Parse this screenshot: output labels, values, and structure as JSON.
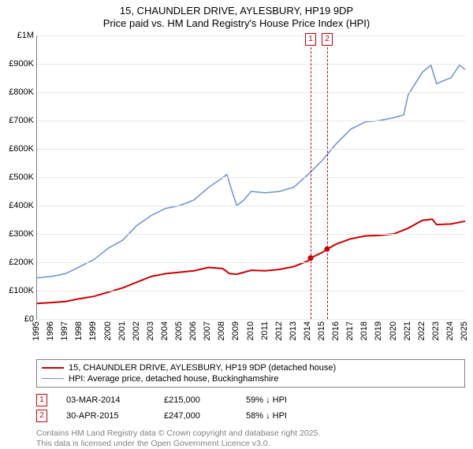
{
  "title": {
    "line1": "15, CHAUNDLER DRIVE, AYLESBURY, HP19 9DP",
    "line2": "Price paid vs. HM Land Registry's House Price Index (HPI)"
  },
  "chart": {
    "type": "line",
    "background_color": "#ffffff",
    "grid_color": "#e8e8e8",
    "axis_color": "#808080",
    "ylim": [
      0,
      1000000
    ],
    "ytick_step": 100000,
    "ytick_labels": [
      "£0",
      "£100K",
      "£200K",
      "£300K",
      "£400K",
      "£500K",
      "£600K",
      "£700K",
      "£800K",
      "£900K",
      "£1M"
    ],
    "xlim": [
      1995,
      2025
    ],
    "xtick_step": 1,
    "xtick_labels": [
      "1995",
      "1996",
      "1997",
      "1998",
      "1999",
      "2000",
      "2001",
      "2002",
      "2003",
      "2004",
      "2005",
      "2006",
      "2007",
      "2008",
      "2009",
      "2010",
      "2011",
      "2012",
      "2013",
      "2014",
      "2015",
      "2016",
      "2017",
      "2018",
      "2019",
      "2020",
      "2021",
      "2022",
      "2023",
      "2024",
      "2025"
    ],
    "label_fontsize": 11,
    "series": [
      {
        "name": "property",
        "label": "15, CHAUNDLER DRIVE, AYLESBURY, HP19 9DP (detached house)",
        "color": "#cc0000",
        "line_width": 2,
        "points": [
          [
            1995,
            55000
          ],
          [
            1996,
            58000
          ],
          [
            1997,
            62000
          ],
          [
            1998,
            72000
          ],
          [
            1999,
            80000
          ],
          [
            2000,
            95000
          ],
          [
            2001,
            110000
          ],
          [
            2002,
            130000
          ],
          [
            2003,
            150000
          ],
          [
            2004,
            160000
          ],
          [
            2005,
            165000
          ],
          [
            2006,
            170000
          ],
          [
            2007,
            182000
          ],
          [
            2008,
            178000
          ],
          [
            2008.5,
            160000
          ],
          [
            2009,
            158000
          ],
          [
            2010,
            172000
          ],
          [
            2011,
            170000
          ],
          [
            2012,
            175000
          ],
          [
            2013,
            185000
          ],
          [
            2014,
            205000
          ],
          [
            2014.17,
            215000
          ],
          [
            2015,
            235000
          ],
          [
            2015.33,
            247000
          ],
          [
            2016,
            265000
          ],
          [
            2017,
            283000
          ],
          [
            2018,
            293000
          ],
          [
            2019,
            295000
          ],
          [
            2020,
            300000
          ],
          [
            2021,
            320000
          ],
          [
            2022,
            348000
          ],
          [
            2022.7,
            352000
          ],
          [
            2023,
            333000
          ],
          [
            2024,
            335000
          ],
          [
            2025,
            345000
          ]
        ],
        "markers": [
          {
            "x": 2014.17,
            "y": 215000
          },
          {
            "x": 2015.33,
            "y": 247000
          }
        ]
      },
      {
        "name": "hpi",
        "label": "HPI: Average price, detached house, Buckinghamshire",
        "color": "#6a8fd8",
        "line_width": 1.5,
        "points": [
          [
            1995,
            145000
          ],
          [
            1996,
            150000
          ],
          [
            1997,
            160000
          ],
          [
            1998,
            185000
          ],
          [
            1999,
            210000
          ],
          [
            2000,
            250000
          ],
          [
            2001,
            278000
          ],
          [
            2002,
            330000
          ],
          [
            2003,
            365000
          ],
          [
            2004,
            390000
          ],
          [
            2005,
            400000
          ],
          [
            2006,
            420000
          ],
          [
            2007,
            463000
          ],
          [
            2008,
            498000
          ],
          [
            2008.3,
            510000
          ],
          [
            2008.7,
            445000
          ],
          [
            2009,
            400000
          ],
          [
            2009.5,
            420000
          ],
          [
            2010,
            450000
          ],
          [
            2011,
            445000
          ],
          [
            2012,
            450000
          ],
          [
            2013,
            465000
          ],
          [
            2014,
            510000
          ],
          [
            2015,
            560000
          ],
          [
            2016,
            620000
          ],
          [
            2017,
            670000
          ],
          [
            2018,
            695000
          ],
          [
            2019,
            700000
          ],
          [
            2020,
            710000
          ],
          [
            2020.7,
            720000
          ],
          [
            2021,
            790000
          ],
          [
            2022,
            870000
          ],
          [
            2022.6,
            895000
          ],
          [
            2023,
            830000
          ],
          [
            2023.7,
            845000
          ],
          [
            2024,
            850000
          ],
          [
            2024.6,
            895000
          ],
          [
            2025,
            880000
          ]
        ]
      }
    ],
    "events": [
      {
        "n": 1,
        "x": 2014.17,
        "color": "#cc0000",
        "dash": "3,3"
      },
      {
        "n": 2,
        "x": 2015.33,
        "color": "#cc0000",
        "dash": "3,3"
      }
    ]
  },
  "legend": {
    "property": "15, CHAUNDLER DRIVE, AYLESBURY, HP19 9DP (detached house)",
    "hpi": "HPI: Average price, detached house, Buckinghamshire"
  },
  "event_rows": [
    {
      "n": "1",
      "date": "03-MAR-2014",
      "price": "£215,000",
      "delta": "59% ↓ HPI",
      "color": "#cc0000"
    },
    {
      "n": "2",
      "date": "30-APR-2015",
      "price": "£247,000",
      "delta": "58% ↓ HPI",
      "color": "#cc0000"
    }
  ],
  "footer": {
    "line1": "Contains HM Land Registry data © Crown copyright and database right 2025.",
    "line2": "This data is licensed under the Open Government Licence v3.0."
  }
}
